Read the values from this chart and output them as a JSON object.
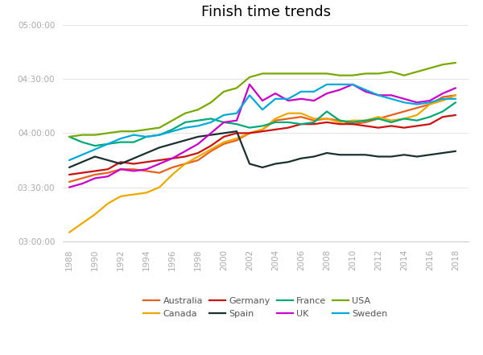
{
  "title": "Finish time trends",
  "years": [
    1988,
    1989,
    1990,
    1991,
    1992,
    1993,
    1994,
    1995,
    1996,
    1997,
    1998,
    1999,
    2000,
    2001,
    2002,
    2003,
    2004,
    2005,
    2006,
    2007,
    2008,
    2009,
    2010,
    2011,
    2012,
    2013,
    2014,
    2015,
    2016,
    2017,
    2018
  ],
  "series": {
    "Australia": [
      12780,
      12900,
      13020,
      13080,
      13200,
      13200,
      13140,
      13080,
      13260,
      13380,
      13500,
      13800,
      14040,
      14160,
      14400,
      14520,
      14820,
      14880,
      14940,
      14820,
      14880,
      14820,
      14700,
      14760,
      14880,
      15000,
      15120,
      15240,
      15360,
      15600,
      15660
    ],
    "Canada": [
      11100,
      11400,
      11700,
      12060,
      12300,
      12360,
      12420,
      12600,
      13020,
      13380,
      13620,
      13860,
      14100,
      14220,
      14400,
      14520,
      14880,
      15060,
      15060,
      14880,
      14880,
      14760,
      14820,
      14820,
      14940,
      14820,
      14880,
      15000,
      15360,
      15480,
      15660
    ],
    "Germany": [
      13020,
      13080,
      13140,
      13200,
      13440,
      13380,
      13440,
      13500,
      13560,
      13620,
      13740,
      13980,
      14280,
      14400,
      14400,
      14460,
      14520,
      14580,
      14700,
      14700,
      14760,
      14700,
      14700,
      14640,
      14580,
      14640,
      14580,
      14640,
      14700,
      14940,
      15000
    ],
    "Spain": [
      13260,
      13440,
      13620,
      13500,
      13380,
      13560,
      13740,
      13920,
      14040,
      14160,
      14280,
      14340,
      14400,
      14460,
      13380,
      13260,
      13380,
      13440,
      13560,
      13620,
      13740,
      13680,
      13680,
      13680,
      13620,
      13620,
      13680,
      13620,
      13680,
      13740,
      13800
    ],
    "France": [
      14280,
      14100,
      13980,
      14040,
      14100,
      14100,
      14280,
      14340,
      14520,
      14760,
      14820,
      14880,
      14760,
      14700,
      14580,
      14640,
      14760,
      14760,
      14700,
      14760,
      15120,
      14820,
      14760,
      14820,
      14880,
      14760,
      14880,
      14820,
      14940,
      15120,
      15420
    ],
    "UK": [
      12600,
      12720,
      12900,
      12960,
      13200,
      13140,
      13200,
      13380,
      13560,
      13800,
      14040,
      14400,
      14760,
      14820,
      16020,
      15480,
      15720,
      15480,
      15540,
      15480,
      15720,
      15840,
      16020,
      15780,
      15660,
      15660,
      15540,
      15420,
      15480,
      15720,
      15900
    ],
    "USA": [
      14280,
      14340,
      14340,
      14400,
      14460,
      14460,
      14520,
      14580,
      14820,
      15060,
      15180,
      15420,
      15780,
      15900,
      16260,
      16380,
      16380,
      16380,
      16380,
      16380,
      16380,
      16320,
      16320,
      16380,
      16380,
      16440,
      16320,
      16440,
      16560,
      16680,
      16740
    ],
    "Sweden": [
      13500,
      13680,
      13860,
      14040,
      14220,
      14340,
      14280,
      14340,
      14460,
      14580,
      14640,
      14760,
      15000,
      15060,
      15660,
      15180,
      15540,
      15540,
      15780,
      15780,
      16020,
      16020,
      16020,
      15840,
      15660,
      15540,
      15420,
      15360,
      15420,
      15540,
      15540
    ]
  },
  "colors": {
    "Australia": "#E8601C",
    "Canada": "#F0A800",
    "Germany": "#CC1111",
    "Spain": "#1A3030",
    "France": "#00AA77",
    "UK": "#CC00CC",
    "USA": "#77AA00",
    "Sweden": "#00AADD"
  },
  "ylim_seconds": [
    10800,
    18000
  ],
  "yticks_seconds": [
    10800,
    12600,
    14400,
    16200,
    18000
  ],
  "legend_order_row1": [
    "Australia",
    "Canada",
    "Germany",
    "Spain"
  ],
  "legend_order_row2": [
    "France",
    "UK",
    "USA",
    "Sweden"
  ],
  "background_color": "#ffffff",
  "title_fontsize": 13,
  "tick_color": "#aaaaaa",
  "spine_color": "#cccccc",
  "grid_color": "#e0e0e0"
}
